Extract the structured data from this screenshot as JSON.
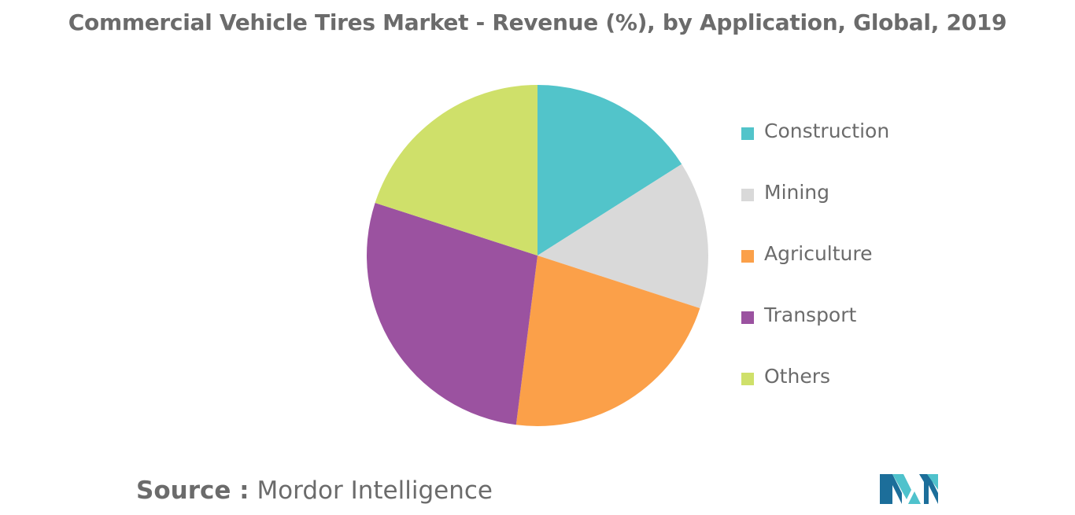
{
  "chart_data": {
    "type": "pie",
    "title": "Commercial Vehicle Tires Market - Revenue (%), by Application, Global, 2019",
    "slices": [
      {
        "label": "Construction",
        "value": 16,
        "color": "#52c4ca"
      },
      {
        "label": "Mining",
        "value": 14,
        "color": "#d9d9d9"
      },
      {
        "label": "Agriculture",
        "value": 22,
        "color": "#fba049"
      },
      {
        "label": "Transport",
        "value": 28,
        "color": "#9b52a0"
      },
      {
        "label": "Others",
        "value": 20,
        "color": "#cfe06a"
      }
    ],
    "legend_position": "right"
  },
  "source": {
    "prefix": "Source :",
    "text": "Mordor Intelligence"
  },
  "logo": {
    "name": "mordor-intelligence-logo",
    "colors": [
      "#1c6e9a",
      "#4fc2cc"
    ]
  }
}
